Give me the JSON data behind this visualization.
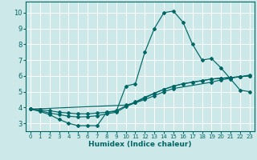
{
  "xlabel": "Humidex (Indice chaleur)",
  "bg_color": "#cce8e8",
  "grid_color": "#ffffff",
  "line_color": "#006666",
  "xlim": [
    -0.5,
    23.5
  ],
  "ylim": [
    2.5,
    10.7
  ],
  "xticks": [
    0,
    1,
    2,
    3,
    4,
    5,
    6,
    7,
    8,
    9,
    10,
    11,
    12,
    13,
    14,
    15,
    16,
    17,
    18,
    19,
    20,
    21,
    22,
    23
  ],
  "yticks": [
    3,
    4,
    5,
    6,
    7,
    8,
    9,
    10
  ],
  "line1_x": [
    0,
    1,
    2,
    3,
    4,
    5,
    6,
    7,
    8,
    9,
    10,
    11,
    12,
    13,
    14,
    15,
    16,
    17,
    18,
    19,
    20,
    21,
    22,
    23
  ],
  "line1_y": [
    3.9,
    3.75,
    3.55,
    3.25,
    3.0,
    2.85,
    2.85,
    2.85,
    3.7,
    3.75,
    5.35,
    5.5,
    7.5,
    9.0,
    10.0,
    10.1,
    9.4,
    8.0,
    7.0,
    7.1,
    6.5,
    5.8,
    5.1,
    5.0
  ],
  "line2_x": [
    0,
    1,
    2,
    3,
    4,
    5,
    6,
    7,
    8,
    9,
    10,
    11,
    12,
    13,
    14,
    15,
    16,
    17,
    18,
    19,
    20,
    21,
    22,
    23
  ],
  "line2_y": [
    3.9,
    3.85,
    3.8,
    3.7,
    3.65,
    3.6,
    3.6,
    3.65,
    3.7,
    3.8,
    4.1,
    4.35,
    4.65,
    4.9,
    5.15,
    5.35,
    5.5,
    5.6,
    5.7,
    5.8,
    5.85,
    5.9,
    5.95,
    6.0
  ],
  "line3_x": [
    0,
    1,
    2,
    3,
    4,
    5,
    6,
    7,
    8,
    9,
    10,
    11,
    12,
    13,
    14,
    15,
    16,
    17,
    18,
    19,
    20,
    21,
    22,
    23
  ],
  "line3_y": [
    3.9,
    3.8,
    3.65,
    3.55,
    3.45,
    3.4,
    3.42,
    3.48,
    3.6,
    3.7,
    4.05,
    4.3,
    4.6,
    4.9,
    5.15,
    5.35,
    5.5,
    5.6,
    5.7,
    5.8,
    5.85,
    5.9,
    5.95,
    6.0
  ],
  "line4_x": [
    0,
    10,
    11,
    12,
    13,
    14,
    15,
    19,
    20,
    21,
    22,
    23
  ],
  "line4_y": [
    3.9,
    4.15,
    4.3,
    4.5,
    4.75,
    5.0,
    5.2,
    5.6,
    5.75,
    5.85,
    5.95,
    6.05
  ]
}
